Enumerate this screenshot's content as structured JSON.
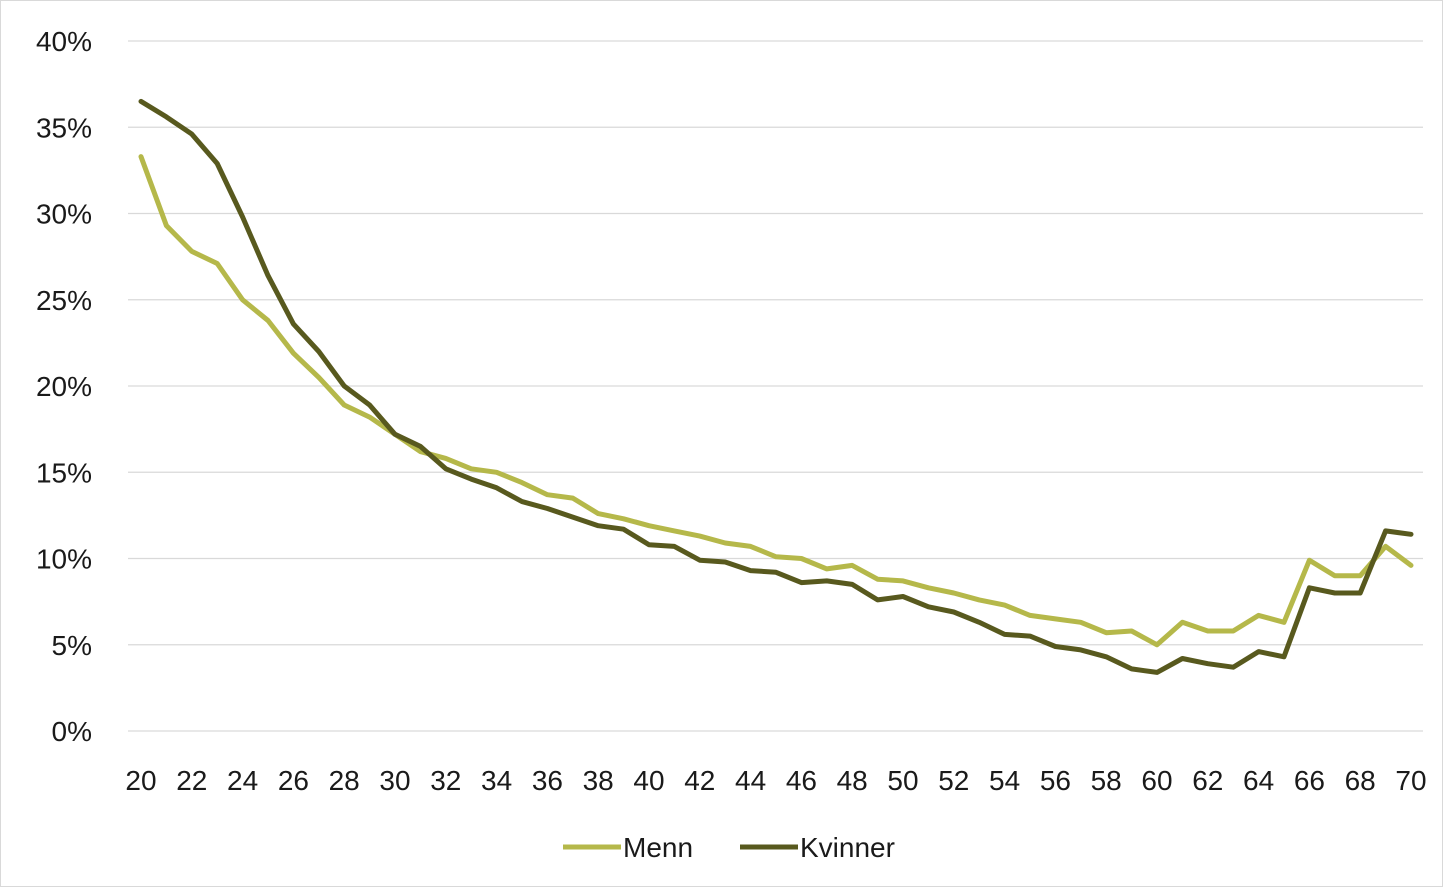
{
  "chart_data": {
    "type": "line",
    "title": "",
    "xlabel": "",
    "ylabel": "",
    "x": [
      20,
      21,
      22,
      23,
      24,
      25,
      26,
      27,
      28,
      29,
      30,
      31,
      32,
      33,
      34,
      35,
      36,
      37,
      38,
      39,
      40,
      41,
      42,
      43,
      44,
      45,
      46,
      47,
      48,
      49,
      50,
      51,
      52,
      53,
      54,
      55,
      56,
      57,
      58,
      59,
      60,
      61,
      62,
      63,
      64,
      65,
      66,
      67,
      68,
      69,
      70
    ],
    "x_tick_labels": [
      "20",
      "22",
      "24",
      "26",
      "28",
      "30",
      "32",
      "34",
      "36",
      "38",
      "40",
      "42",
      "44",
      "46",
      "48",
      "50",
      "52",
      "54",
      "56",
      "58",
      "60",
      "62",
      "64",
      "66",
      "68",
      "70"
    ],
    "x_tick_values": [
      20,
      22,
      24,
      26,
      28,
      30,
      32,
      34,
      36,
      38,
      40,
      42,
      44,
      46,
      48,
      50,
      52,
      54,
      56,
      58,
      60,
      62,
      64,
      66,
      68,
      70
    ],
    "y_tick_labels": [
      "0%",
      "5%",
      "10%",
      "15%",
      "20%",
      "25%",
      "30%",
      "35%",
      "40%"
    ],
    "y_tick_values": [
      0,
      5,
      10,
      15,
      20,
      25,
      30,
      35,
      40
    ],
    "ylim": [
      0,
      40
    ],
    "xlim": [
      20,
      70
    ],
    "grid": "horizontal",
    "legend_position": "bottom",
    "series": [
      {
        "name": "Menn",
        "color": "#b5b84a",
        "values": [
          33.3,
          29.3,
          27.8,
          27.1,
          25.0,
          23.8,
          21.9,
          20.5,
          18.9,
          18.2,
          17.2,
          16.2,
          15.8,
          15.2,
          15.0,
          14.4,
          13.7,
          13.5,
          12.6,
          12.3,
          11.9,
          11.6,
          11.3,
          10.9,
          10.7,
          10.1,
          10.0,
          9.4,
          9.6,
          8.8,
          8.7,
          8.3,
          8.0,
          7.6,
          7.3,
          6.7,
          6.5,
          6.3,
          5.7,
          5.8,
          5.0,
          6.3,
          5.8,
          5.8,
          6.7,
          6.3,
          9.9,
          9.0,
          9.0,
          10.7,
          9.6
        ]
      },
      {
        "name": "Kvinner",
        "color": "#58591e",
        "values": [
          36.5,
          35.6,
          34.6,
          32.9,
          29.8,
          26.4,
          23.6,
          22.0,
          20.0,
          18.9,
          17.2,
          16.5,
          15.2,
          14.6,
          14.1,
          13.3,
          12.9,
          12.4,
          11.9,
          11.7,
          10.8,
          10.7,
          9.9,
          9.8,
          9.3,
          9.2,
          8.6,
          8.7,
          8.5,
          7.6,
          7.8,
          7.2,
          6.9,
          6.3,
          5.6,
          5.5,
          4.9,
          4.7,
          4.3,
          3.6,
          3.4,
          4.2,
          3.9,
          3.7,
          4.6,
          4.3,
          8.3,
          8.0,
          8.0,
          11.6,
          11.4
        ]
      }
    ]
  }
}
